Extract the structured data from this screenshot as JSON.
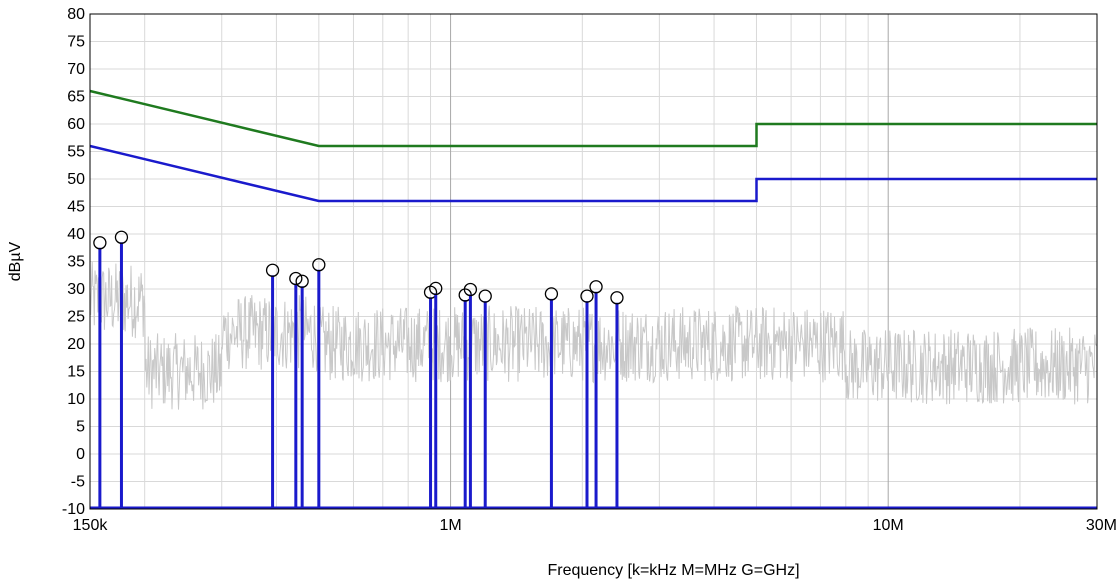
{
  "chart_data": {
    "type": "line",
    "title": "",
    "xlabel": "Frequency [k=kHz M=MHz G=GHz]",
    "ylabel": "dBµV",
    "x_scale": "log",
    "xlim": [
      150000,
      30000000
    ],
    "ylim": [
      -10,
      80
    ],
    "grid": true,
    "x_ticks": [
      {
        "value": 150000,
        "label": "150k"
      },
      {
        "value": 1000000,
        "label": "1M"
      },
      {
        "value": 10000000,
        "label": "10M"
      },
      {
        "value": 30000000,
        "label": "30M"
      }
    ],
    "y_ticks": [
      80,
      75,
      70,
      65,
      60,
      55,
      50,
      45,
      40,
      35,
      30,
      25,
      20,
      15,
      10,
      5,
      0,
      -5,
      -10
    ],
    "limit_lines": [
      {
        "color": "#1f7a1f",
        "points": [
          [
            150000,
            66
          ],
          [
            500000,
            56
          ],
          [
            5000000,
            56
          ],
          [
            5000000,
            60
          ],
          [
            30000000,
            60
          ]
        ]
      },
      {
        "color": "#1a1acc",
        "points": [
          [
            150000,
            56
          ],
          [
            500000,
            46
          ],
          [
            5000000,
            46
          ],
          [
            5000000,
            50
          ],
          [
            30000000,
            50
          ]
        ]
      }
    ],
    "noise_color": "#c8c8c8",
    "peaks_color": "#1a1acc",
    "peaks": [
      {
        "x": 158000,
        "y": 37.5
      },
      {
        "x": 177000,
        "y": 38.5
      },
      {
        "x": 392000,
        "y": 32.5
      },
      {
        "x": 443000,
        "y": 31.0
      },
      {
        "x": 458000,
        "y": 30.5
      },
      {
        "x": 500000,
        "y": 33.5
      },
      {
        "x": 900000,
        "y": 28.5
      },
      {
        "x": 925000,
        "y": 29.2
      },
      {
        "x": 1080000,
        "y": 28.0
      },
      {
        "x": 1110000,
        "y": 29.0
      },
      {
        "x": 1200000,
        "y": 27.8
      },
      {
        "x": 1700000,
        "y": 28.2
      },
      {
        "x": 2050000,
        "y": 27.8
      },
      {
        "x": 2150000,
        "y": 29.5
      },
      {
        "x": 2400000,
        "y": 27.5
      }
    ]
  }
}
